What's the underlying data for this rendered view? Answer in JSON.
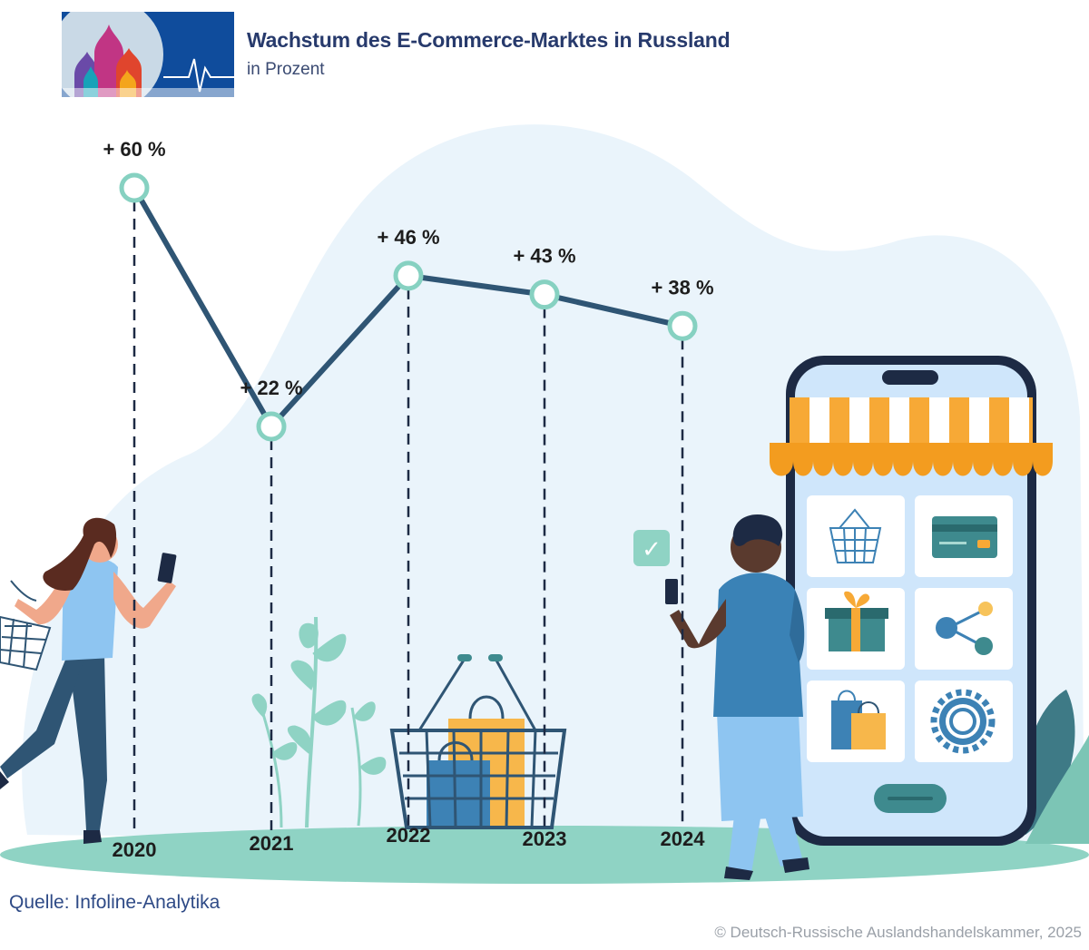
{
  "header": {
    "title": "Wachstum des E-Commerce-Marktes in Russland",
    "subtitle": "in Prozent"
  },
  "footer": {
    "source": "Quelle: Infoline-Analytika",
    "copyright": "© Deutsch-Russische Auslandshandelskammer, 2025"
  },
  "colors": {
    "line": "#2f5574",
    "marker_stroke": "#86d1c1",
    "blob": "#eaf4fb",
    "ground": "#8fd3c4",
    "title": "#273a6c",
    "awning_orange": "#f7a936",
    "phone_frame": "#1d2a44"
  },
  "chart_data": {
    "type": "line",
    "title": "Wachstum des E-Commerce-Marktes in Russland",
    "subtitle": "in Prozent",
    "categories": [
      "2020",
      "2021",
      "2022",
      "2023",
      "2024"
    ],
    "values": [
      60,
      22,
      46,
      43,
      38
    ],
    "value_labels": [
      "+ 60 %",
      "+ 22 %",
      "+ 46 %",
      "+ 43 %",
      "+ 38 %"
    ],
    "unit": "%",
    "ylim": [
      22,
      60
    ],
    "grid": false,
    "legend": "none"
  },
  "illustration": {
    "phone_icons": [
      "basket-icon",
      "credit-card-icon",
      "gift-box-icon",
      "share-icon",
      "shopping-bags-icon",
      "settings-gear-icon"
    ],
    "checkmark": "✓"
  }
}
